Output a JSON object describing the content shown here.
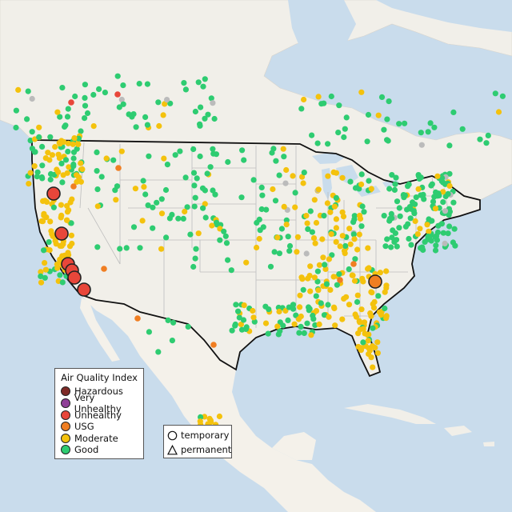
{
  "legend": {
    "title": "Air Quality Index",
    "items": [
      {
        "label": "Hazardous",
        "color": "#7e2b27"
      },
      {
        "label": "Very Unhealthy",
        "color": "#8f3f97"
      },
      {
        "label": "Unhealthy",
        "color": "#e8463a"
      },
      {
        "label": "USG",
        "color": "#f07e22"
      },
      {
        "label": "Moderate",
        "color": "#f4c20d"
      },
      {
        "label": "Good",
        "color": "#2ecc71"
      }
    ]
  },
  "shape_legend": {
    "items": [
      {
        "label": "temporary",
        "icon": "circle-icon"
      },
      {
        "label": "permanent",
        "icon": "triangle-icon"
      }
    ]
  },
  "colors": {
    "water": "#c9dcec",
    "land": "#f1efe9",
    "mexico_land": "#f4f1ea",
    "us_border": "#111111",
    "state_lines": "#bdbdbd",
    "good": "#2ecc71",
    "moderate": "#f4c20d",
    "usg": "#f07e22",
    "unhealthy": "#e8463a",
    "no_data": "#bbbbbb"
  }
}
